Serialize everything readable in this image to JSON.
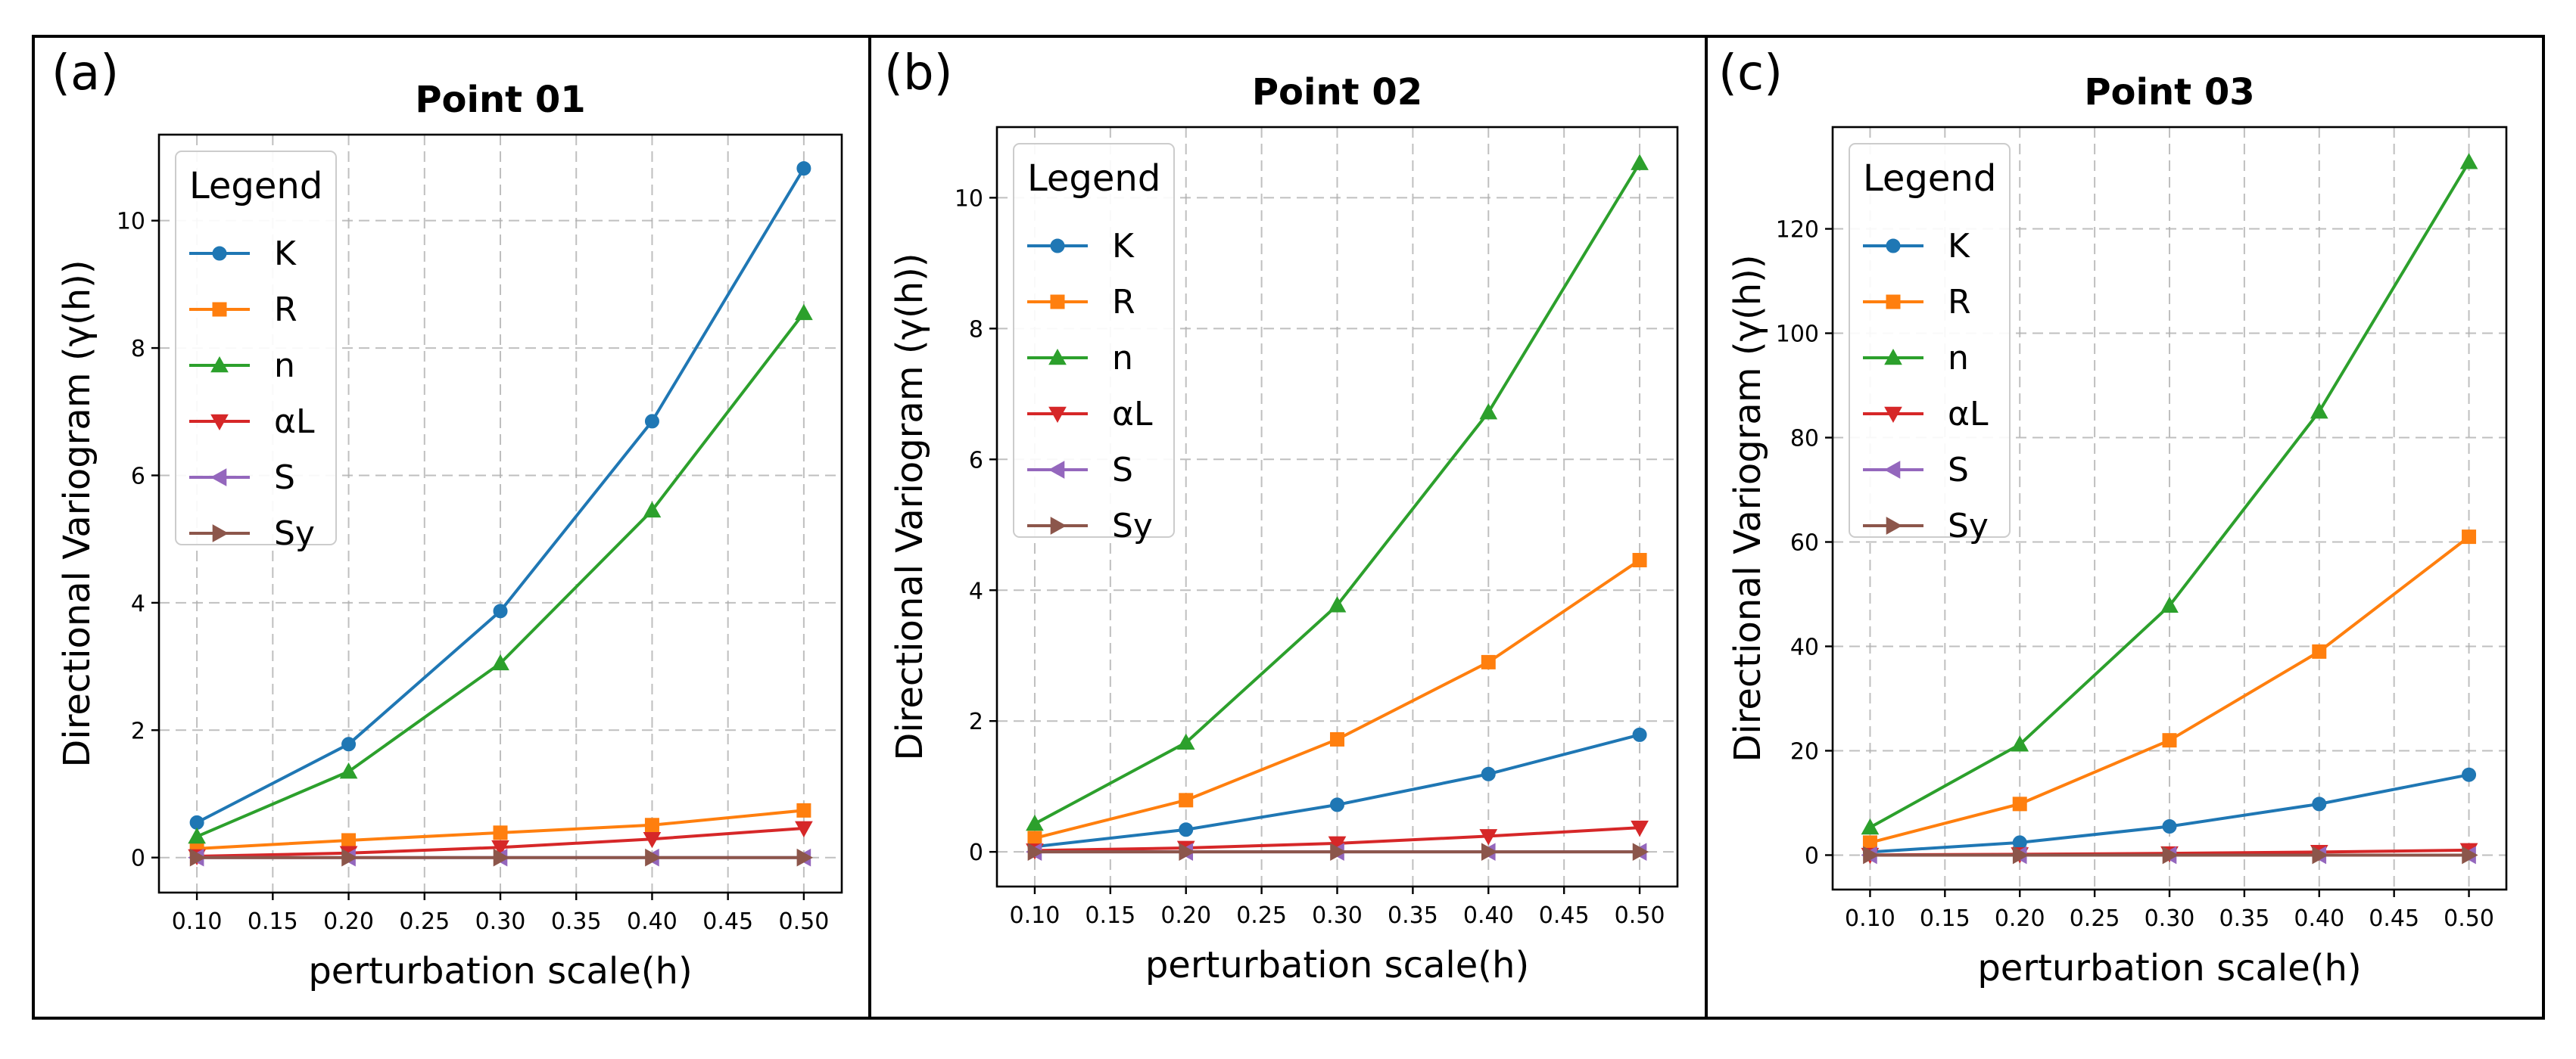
{
  "figure": {
    "y_axis_label": "Directional Variogram (γ(h))"
  },
  "colors": {
    "K": "#1f77b4",
    "R": "#ff7f0e",
    "n": "#2ca02c",
    "αL": "#d62728",
    "S": "#9467bd",
    "Sy": "#8c564b"
  },
  "chart_data": [
    {
      "type": "line",
      "panel_label": "(a)",
      "title": "Point 01",
      "xlabel": "perturbation scale(h)",
      "ylabel": "Directional Variogram (γ(h))",
      "x": [
        0.1,
        0.2,
        0.3,
        0.4,
        0.5
      ],
      "x_ticks": [
        "0.10",
        "0.15",
        "0.20",
        "0.25",
        "0.30",
        "0.35",
        "0.40",
        "0.45",
        "0.50"
      ],
      "xlim": [
        0.075,
        0.525
      ],
      "ylim": [
        -0.55,
        11.35
      ],
      "y_ticks": [
        "0",
        "2",
        "4",
        "6",
        "8",
        "10"
      ],
      "grid": true,
      "legend_title": "Legend",
      "legend_position": "upper-left",
      "series": [
        {
          "name": "K",
          "marker": "circle",
          "values": [
            0.55,
            1.78,
            3.87,
            6.85,
            10.82
          ]
        },
        {
          "name": "R",
          "marker": "square",
          "values": [
            0.14,
            0.27,
            0.39,
            0.51,
            0.74
          ]
        },
        {
          "name": "n",
          "marker": "triangle-up",
          "values": [
            0.33,
            1.35,
            3.05,
            5.45,
            8.55
          ]
        },
        {
          "name": "αL",
          "marker": "triangle-down",
          "values": [
            0.02,
            0.07,
            0.16,
            0.29,
            0.46
          ]
        },
        {
          "name": "S",
          "marker": "triangle-left",
          "values": [
            0.0,
            0.0,
            0.0,
            0.0,
            0.0
          ]
        },
        {
          "name": "Sy",
          "marker": "triangle-right",
          "values": [
            0.0,
            0.0,
            0.0,
            0.0,
            0.0
          ]
        }
      ]
    },
    {
      "type": "line",
      "panel_label": "(b)",
      "title": "Point 02",
      "xlabel": "perturbation scale(h)",
      "ylabel": "Directional Variogram (γ(h))",
      "x": [
        0.1,
        0.2,
        0.3,
        0.4,
        0.5
      ],
      "x_ticks": [
        "0.10",
        "0.15",
        "0.20",
        "0.25",
        "0.30",
        "0.35",
        "0.40",
        "0.45",
        "0.50"
      ],
      "xlim": [
        0.075,
        0.525
      ],
      "ylim": [
        -0.53,
        11.08
      ],
      "y_ticks": [
        "0",
        "2",
        "4",
        "6",
        "8",
        "10"
      ],
      "grid": true,
      "legend_title": "Legend",
      "legend_position": "upper-left",
      "series": [
        {
          "name": "K",
          "marker": "circle",
          "values": [
            0.08,
            0.34,
            0.72,
            1.19,
            1.79
          ]
        },
        {
          "name": "R",
          "marker": "square",
          "values": [
            0.21,
            0.79,
            1.72,
            2.9,
            4.46
          ]
        },
        {
          "name": "n",
          "marker": "triangle-up",
          "values": [
            0.43,
            1.67,
            3.77,
            6.72,
            10.53
          ]
        },
        {
          "name": "αL",
          "marker": "triangle-down",
          "values": [
            0.02,
            0.06,
            0.13,
            0.24,
            0.37
          ]
        },
        {
          "name": "S",
          "marker": "triangle-left",
          "values": [
            0.0,
            0.0,
            0.0,
            0.0,
            0.0
          ]
        },
        {
          "name": "Sy",
          "marker": "triangle-right",
          "values": [
            0.0,
            0.0,
            0.0,
            0.0,
            0.0
          ]
        }
      ]
    },
    {
      "type": "line",
      "panel_label": "(c)",
      "title": "Point 03",
      "xlabel": "perturbation scale(h)",
      "ylabel": "Directional Variogram (γ(h))",
      "x": [
        0.1,
        0.2,
        0.3,
        0.4,
        0.5
      ],
      "x_ticks": [
        "0.10",
        "0.15",
        "0.20",
        "0.25",
        "0.30",
        "0.35",
        "0.40",
        "0.45",
        "0.50"
      ],
      "xlim": [
        0.075,
        0.525
      ],
      "ylim": [
        -6.6,
        139.5
      ],
      "y_ticks": [
        "0",
        "20",
        "40",
        "60",
        "80",
        "100",
        "120"
      ],
      "grid": true,
      "legend_title": "Legend",
      "legend_position": "upper-left",
      "series": [
        {
          "name": "K",
          "marker": "circle",
          "values": [
            0.6,
            2.4,
            5.5,
            9.8,
            15.4
          ]
        },
        {
          "name": "R",
          "marker": "square",
          "values": [
            2.4,
            9.8,
            22.0,
            39.0,
            61.0
          ]
        },
        {
          "name": "n",
          "marker": "triangle-up",
          "values": [
            5.3,
            21.2,
            47.8,
            85.0,
            132.8
          ]
        },
        {
          "name": "αL",
          "marker": "triangle-down",
          "values": [
            0.04,
            0.15,
            0.34,
            0.6,
            0.95
          ]
        },
        {
          "name": "S",
          "marker": "triangle-left",
          "values": [
            0.0,
            0.0,
            0.0,
            0.0,
            0.0
          ]
        },
        {
          "name": "Sy",
          "marker": "triangle-right",
          "values": [
            0.0,
            0.0,
            0.0,
            0.0,
            0.0
          ]
        }
      ]
    }
  ]
}
